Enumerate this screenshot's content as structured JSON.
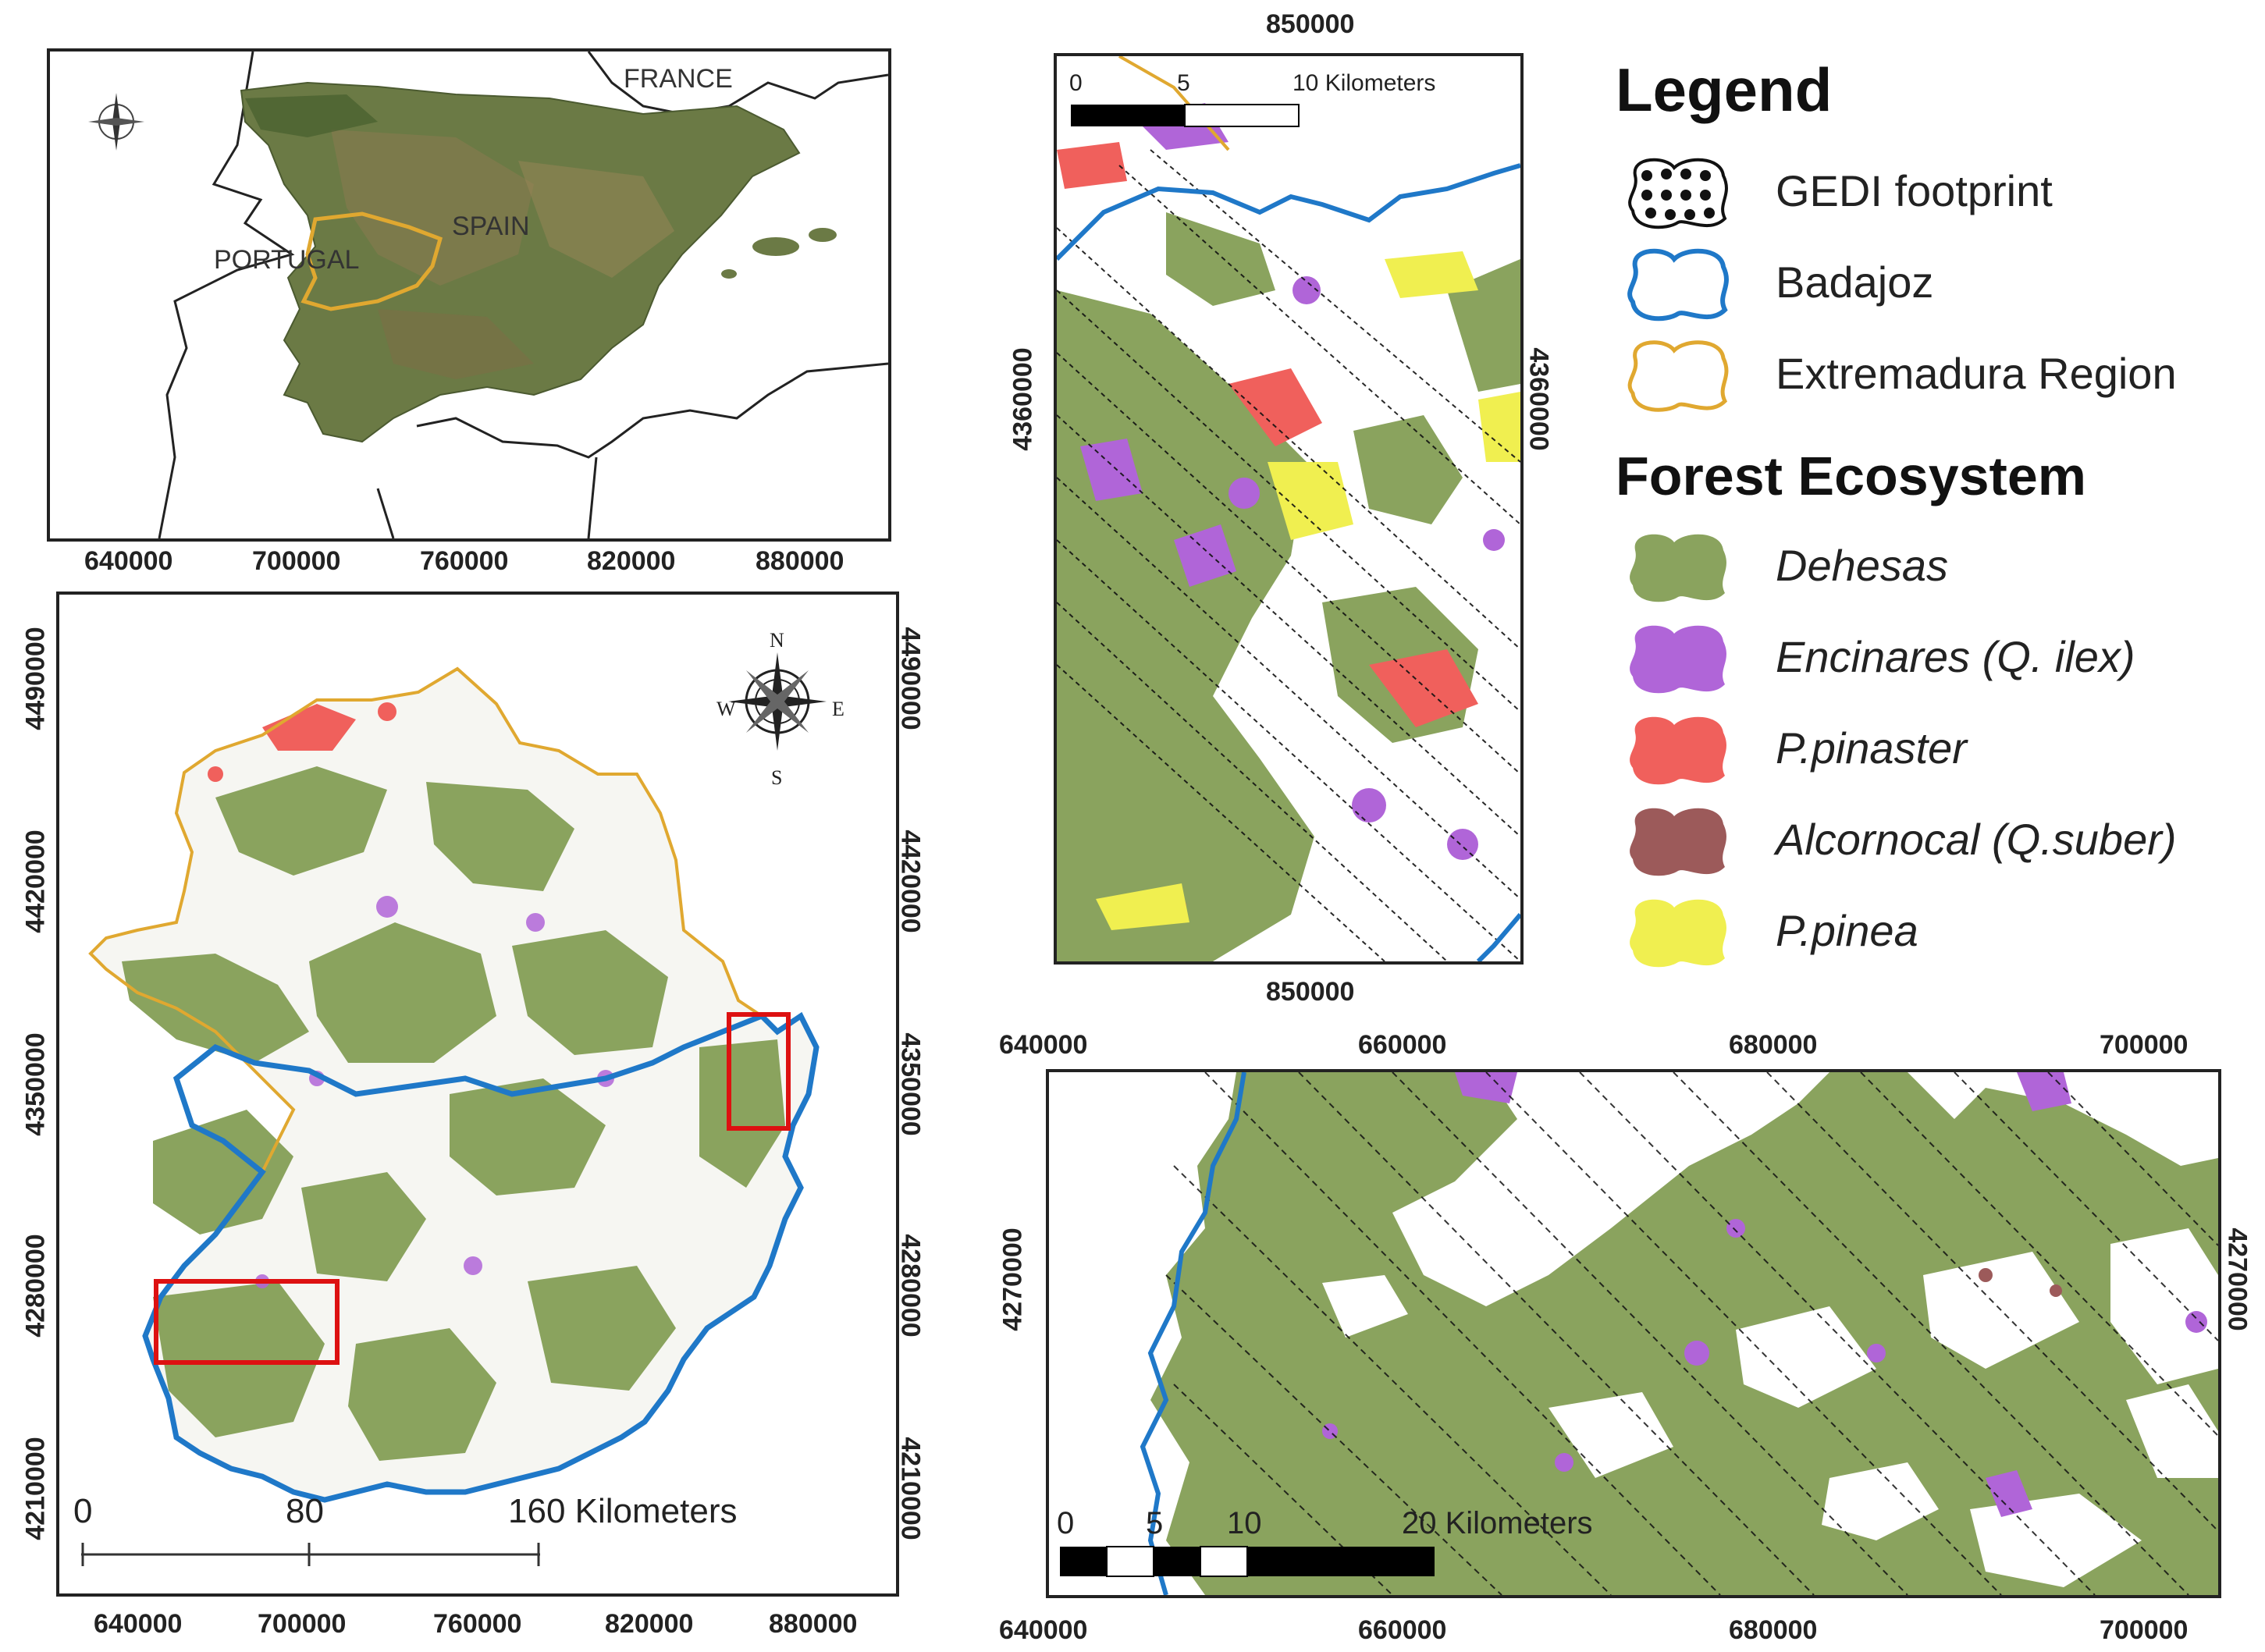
{
  "inset_map": {
    "labels": {
      "france": "FRANCE",
      "spain": "SPAIN",
      "portugal": "PORTUGAL"
    },
    "x_ticks": [
      "640000",
      "700000",
      "760000",
      "820000",
      "880000"
    ]
  },
  "main_map": {
    "x_ticks_bottom": [
      "640000",
      "700000",
      "760000",
      "820000",
      "880000"
    ],
    "y_ticks": [
      "4490000",
      "4420000",
      "4350000",
      "4280000",
      "4210000"
    ],
    "scale": {
      "t0": "0",
      "t1": "80",
      "t2": "160 Kilometers"
    },
    "compass": {
      "n": "N",
      "s": "S",
      "e": "E",
      "w": "W"
    }
  },
  "zoom_top": {
    "x_tick": "850000",
    "y_tick": "4360000",
    "scale": {
      "t0": "0",
      "t1": "5",
      "t2": "10 Kilometers"
    }
  },
  "zoom_bottom": {
    "x_ticks": [
      "640000",
      "660000",
      "680000",
      "700000"
    ],
    "y_tick": "4270000",
    "scale": {
      "t0": "0",
      "t1": "5",
      "t2": "10",
      "t3": "20 Kilometers"
    }
  },
  "legend": {
    "title": "Legend",
    "items": [
      {
        "label": "GEDI footprint",
        "color": "#111111",
        "symbol": "dots-icon"
      },
      {
        "label": "Badajoz",
        "color": "#1f78c8",
        "symbol": "outline-icon"
      },
      {
        "label": "Extremadura Region",
        "color": "#e0a830",
        "symbol": "outline-icon"
      }
    ],
    "section_title": "Forest Ecosystem",
    "forest_items": [
      {
        "label": "Dehesas",
        "color": "#8aa35e"
      },
      {
        "label": "Encinares (Q. ilex)",
        "color": "#b065d8"
      },
      {
        "label": "P.pinaster",
        "color": "#f0605c"
      },
      {
        "label": "Alcornocal (Q.suber)",
        "color": "#9c5a5a"
      },
      {
        "label": "P.pinea",
        "color": "#f0ef50"
      }
    ]
  }
}
